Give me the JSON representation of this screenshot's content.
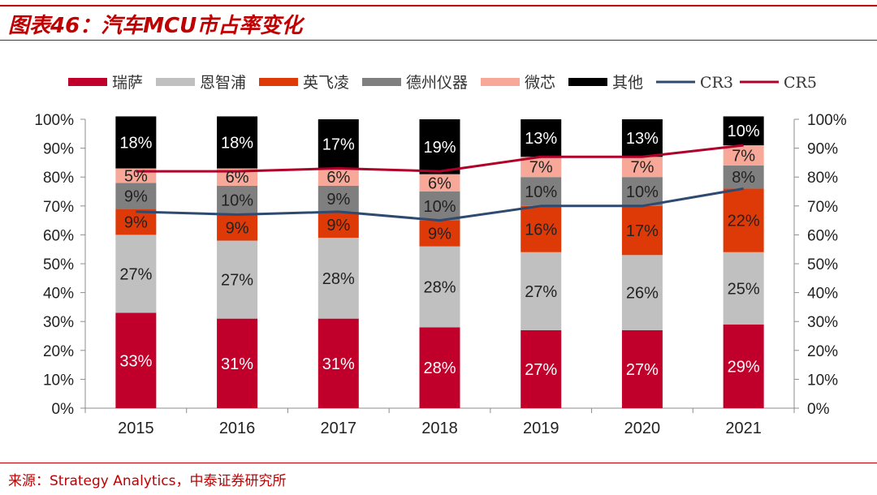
{
  "header": {
    "title": "图表46：汽车MCU市占率变化"
  },
  "footer": {
    "source": "来源：Strategy Analytics，中泰证券研究所"
  },
  "chart_data": {
    "type": "bar",
    "subtype": "stacked-percent-with-lines",
    "title": "图表46：汽车MCU市占率变化",
    "categories": [
      "2015",
      "2016",
      "2017",
      "2018",
      "2019",
      "2020",
      "2021"
    ],
    "series": [
      {
        "name": "瑞萨",
        "values": [
          33,
          31,
          31,
          28,
          27,
          27,
          29
        ],
        "color": "#c0002a",
        "label_color": "#ffffff"
      },
      {
        "name": "恩智浦",
        "values": [
          27,
          27,
          28,
          28,
          27,
          26,
          25
        ],
        "color": "#c0c0c0",
        "label_color": "#222222"
      },
      {
        "name": "英飞凌",
        "values": [
          9,
          9,
          9,
          9,
          16,
          17,
          22
        ],
        "color": "#de3a08",
        "label_color": "#222222"
      },
      {
        "name": "德州仪器",
        "values": [
          9,
          10,
          9,
          10,
          10,
          10,
          8
        ],
        "color": "#7f7f7f",
        "label_color": "#222222"
      },
      {
        "name": "微芯",
        "values": [
          5,
          6,
          6,
          6,
          7,
          7,
          7
        ],
        "color": "#f7a898",
        "label_color": "#222222"
      },
      {
        "name": "其他",
        "values": [
          18,
          18,
          17,
          19,
          13,
          13,
          10
        ],
        "color": "#000000",
        "label_color": "#ffffff"
      }
    ],
    "lines": [
      {
        "name": "CR3",
        "values": [
          68,
          67,
          68,
          65,
          70,
          70,
          76
        ],
        "color": "#2e4a70"
      },
      {
        "name": "CR5",
        "values": [
          82,
          82,
          83,
          82,
          87,
          87,
          91
        ],
        "color": "#b0002a"
      }
    ],
    "ylim": [
      0,
      100
    ],
    "yticks": [
      "0%",
      "10%",
      "20%",
      "30%",
      "40%",
      "50%",
      "60%",
      "70%",
      "80%",
      "90%",
      "100%"
    ],
    "y2ticks": [
      "0%",
      "10%",
      "20%",
      "30%",
      "40%",
      "50%",
      "60%",
      "70%",
      "80%",
      "90%",
      "100%"
    ],
    "legend_position": "top",
    "grid": false
  }
}
